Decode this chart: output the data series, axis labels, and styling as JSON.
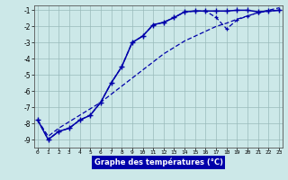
{
  "title": "Graphe des températures (°C)",
  "bg_color": "#cce8e8",
  "grid_color": "#99bbbb",
  "line_color": "#0000aa",
  "xlim": [
    0,
    23
  ],
  "ylim": [
    -9.5,
    -0.7
  ],
  "xticks": [
    0,
    1,
    2,
    3,
    4,
    5,
    6,
    7,
    8,
    9,
    10,
    11,
    12,
    13,
    14,
    15,
    16,
    17,
    18,
    19,
    20,
    21,
    22,
    23
  ],
  "yticks": [
    -9,
    -8,
    -7,
    -6,
    -5,
    -4,
    -3,
    -2,
    -1
  ],
  "curve1_x": [
    0,
    1,
    2,
    3,
    4,
    5,
    6,
    7,
    8,
    9,
    10,
    11,
    12,
    13,
    14,
    15,
    16,
    17,
    18,
    19,
    20,
    21,
    22,
    23
  ],
  "curve1_y": [
    -7.8,
    -9.0,
    -8.5,
    -8.3,
    -7.8,
    -7.5,
    -6.7,
    -5.5,
    -4.5,
    -3.0,
    -2.6,
    -1.9,
    -1.75,
    -1.45,
    -1.1,
    -1.05,
    -1.05,
    -1.05,
    -1.05,
    -1.0,
    -1.0,
    -1.1,
    -1.05,
    -1.0
  ],
  "curve2_x": [
    0,
    1,
    2,
    3,
    4,
    5,
    6,
    7,
    8,
    9,
    10,
    11,
    12,
    13,
    14,
    15,
    16,
    17,
    18,
    19,
    20,
    21,
    22,
    23
  ],
  "curve2_y": [
    -7.8,
    -9.0,
    -8.5,
    -8.3,
    -7.8,
    -7.5,
    -6.7,
    -5.5,
    -4.5,
    -3.0,
    -2.6,
    -1.9,
    -1.75,
    -1.45,
    -1.1,
    -1.05,
    -1.05,
    -1.45,
    -2.15,
    -1.6,
    -1.35,
    -1.15,
    -1.05,
    -1.0
  ],
  "curve3_x": [
    0,
    1,
    2,
    3,
    4,
    5,
    6,
    7,
    8,
    9,
    10,
    11,
    12,
    13,
    14,
    15,
    16,
    17,
    18,
    19,
    20,
    21,
    22,
    23
  ],
  "curve3_y": [
    -7.8,
    -8.8,
    -8.3,
    -7.9,
    -7.5,
    -7.1,
    -6.7,
    -6.2,
    -5.7,
    -5.2,
    -4.7,
    -4.2,
    -3.7,
    -3.3,
    -2.9,
    -2.6,
    -2.3,
    -2.0,
    -1.8,
    -1.55,
    -1.35,
    -1.15,
    -1.0,
    -0.85
  ]
}
